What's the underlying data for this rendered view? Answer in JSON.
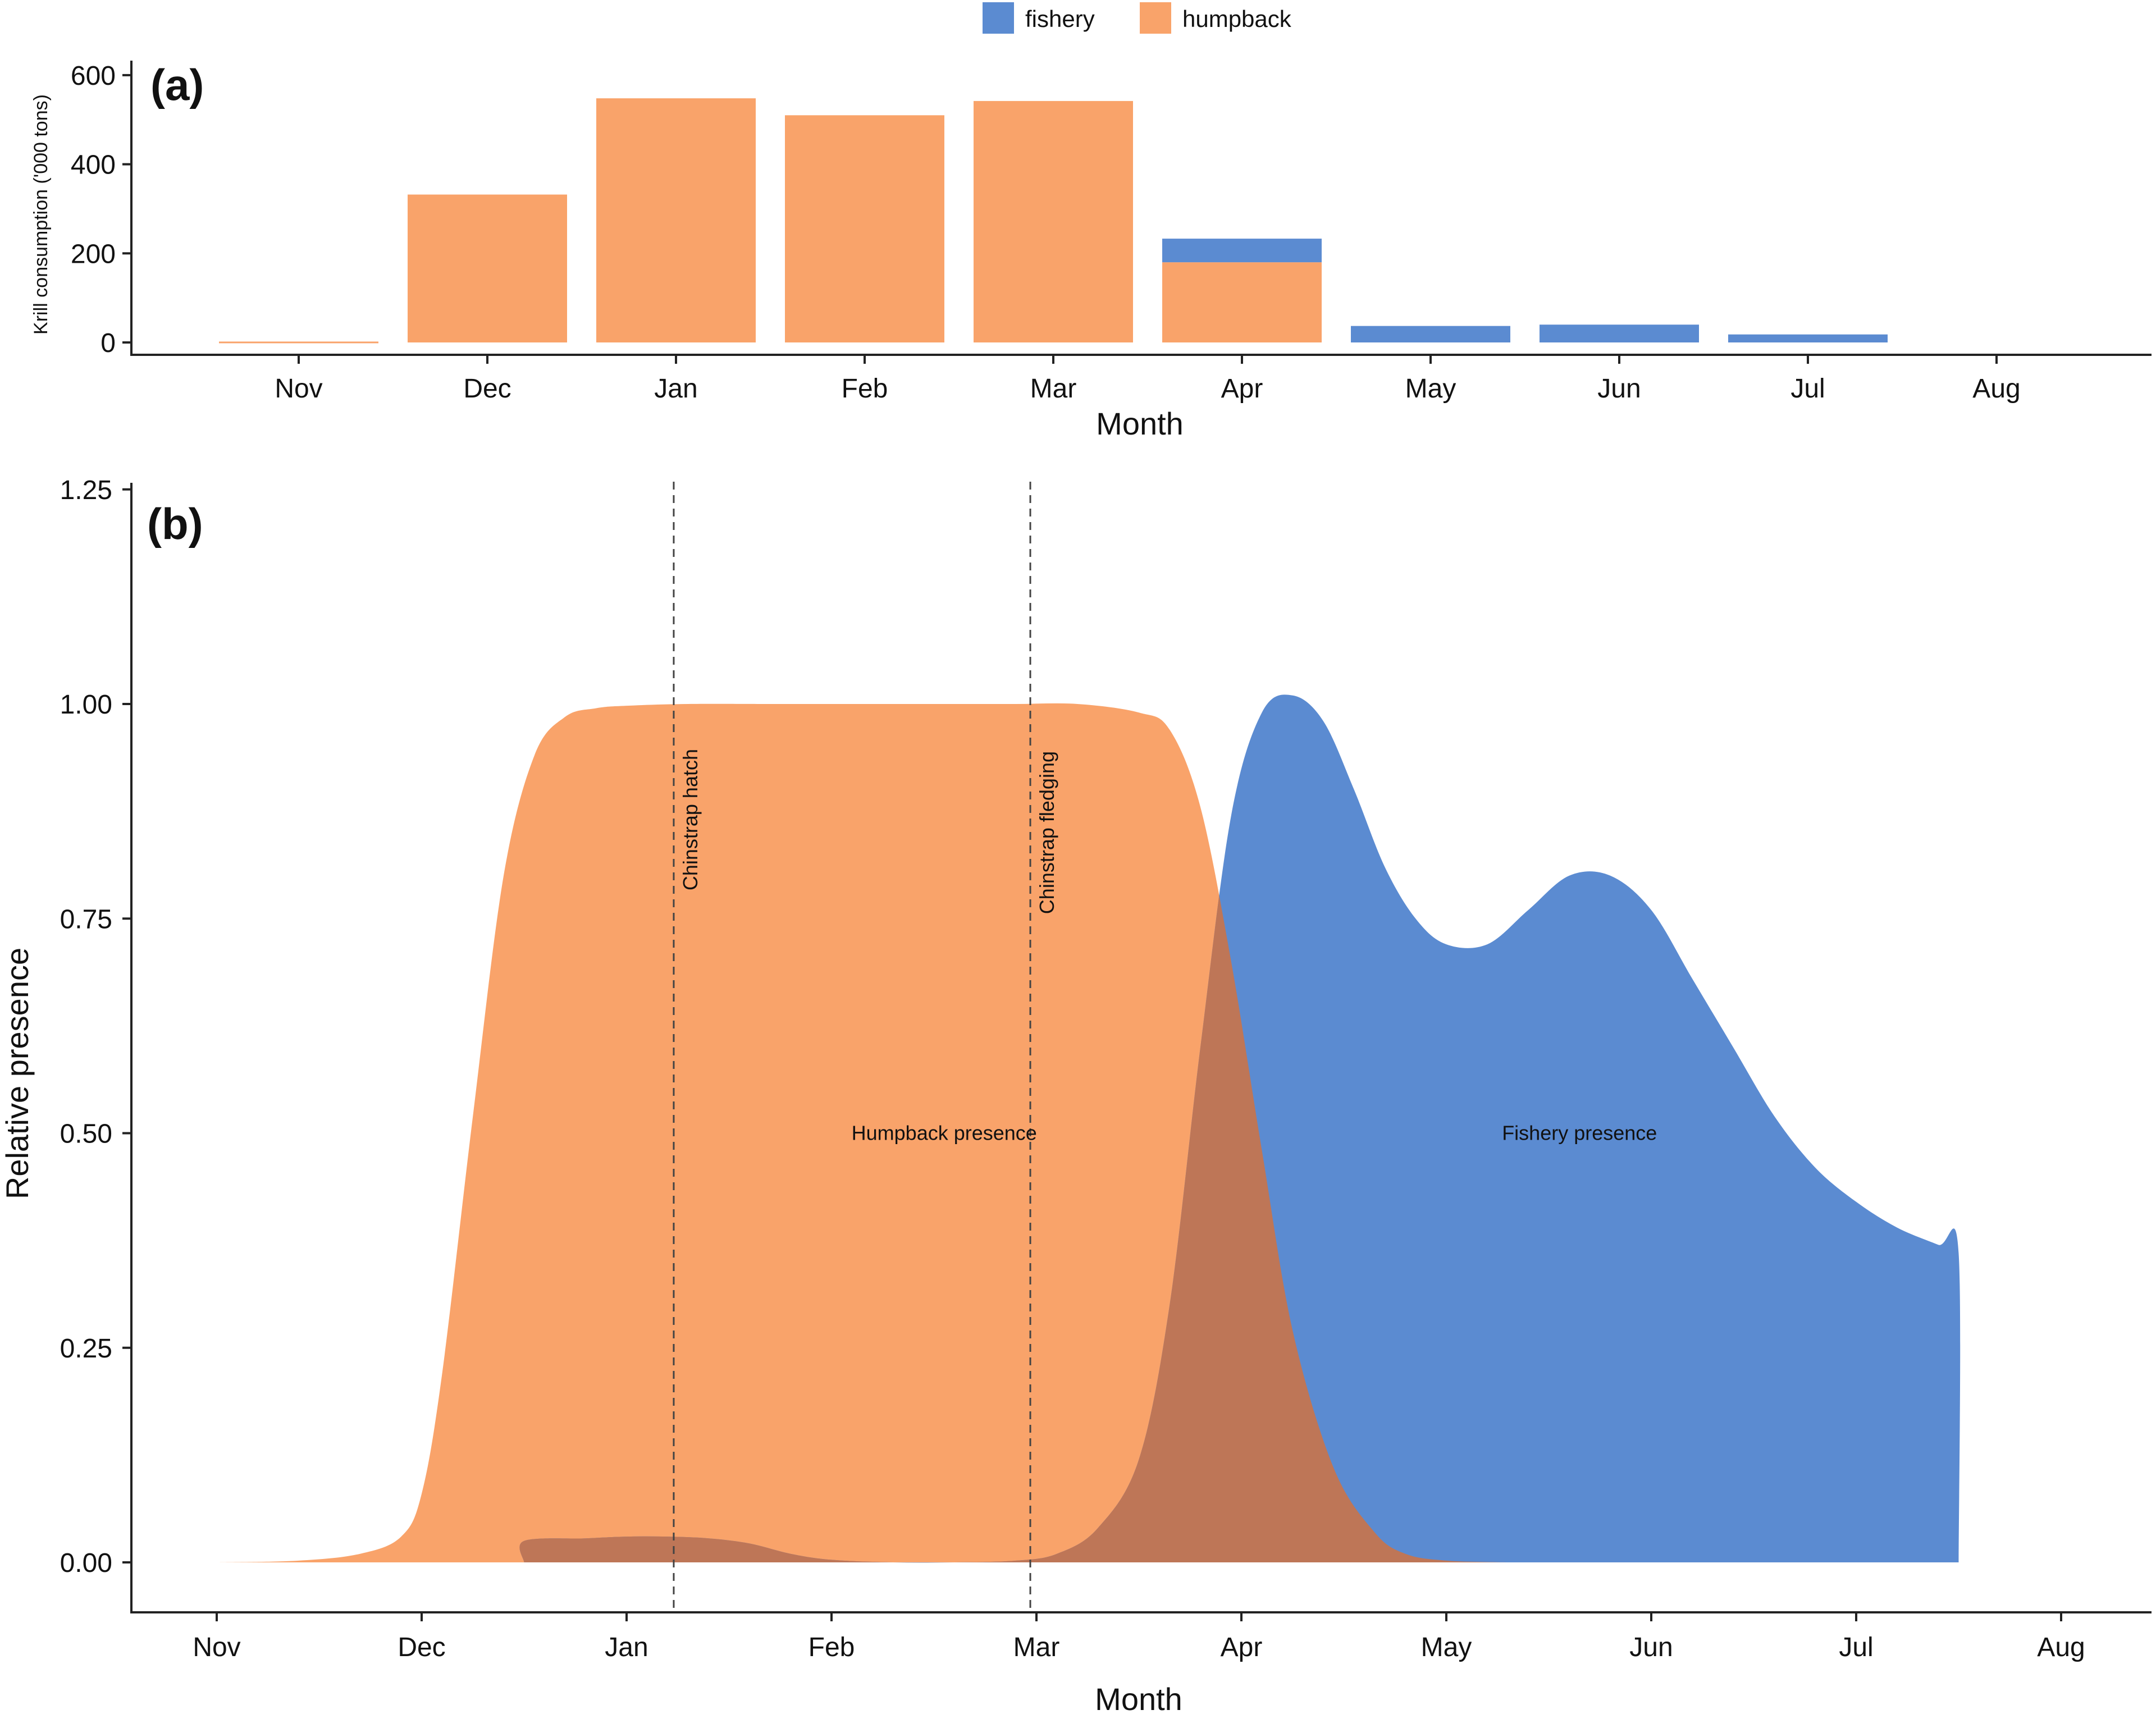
{
  "legend": {
    "items": [
      {
        "label": "fishery",
        "color": "#5b8bd1"
      },
      {
        "label": "humpback",
        "color": "#f9a36a"
      }
    ]
  },
  "colors": {
    "fishery": "#5b8bd1",
    "humpback": "#f9a36a",
    "overlap": "#be7657"
  },
  "chart_data": [
    {
      "type": "bar",
      "panel_label": "(a)",
      "stacked": true,
      "categories": [
        "Nov",
        "Dec",
        "Jan",
        "Feb",
        "Mar",
        "Apr",
        "May",
        "Jun",
        "Jul",
        "Aug"
      ],
      "series": [
        {
          "name": "humpback",
          "values": [
            2,
            332,
            548,
            510,
            542,
            180,
            0,
            0,
            0,
            0
          ]
        },
        {
          "name": "fishery",
          "values": [
            0,
            0,
            0,
            0,
            0,
            53,
            37,
            40,
            18,
            0
          ]
        }
      ],
      "xlabel": "Month",
      "ylabel": "Krill consumption ('000 tons)",
      "ylim": [
        0,
        620
      ],
      "yticks": [
        0,
        200,
        400,
        600
      ],
      "grid": false
    },
    {
      "type": "area",
      "panel_label": "(b)",
      "xlabel": "Month",
      "ylabel": "Relative presence",
      "x_ticks": [
        "Nov",
        "Dec",
        "Jan",
        "Feb",
        "Mar",
        "Apr",
        "May",
        "Jun",
        "Jul",
        "Aug"
      ],
      "xlim_months": [
        0,
        9
      ],
      "ylim": [
        -0.06,
        1.27
      ],
      "yticks": [
        "0.00",
        "0.25",
        "0.50",
        "0.75",
        "1.00",
        "1.25"
      ],
      "grid": false,
      "series": [
        {
          "name": "humpback",
          "label": "Humpback presence",
          "label_at": [
            3.55,
            0.5
          ],
          "x": [
            0.0,
            0.4,
            0.7,
            0.9,
            1.0,
            1.1,
            1.25,
            1.4,
            1.55,
            1.7,
            1.85,
            2.0,
            2.3,
            2.7,
            3.0,
            3.3,
            3.6,
            3.9,
            4.2,
            4.5,
            4.65,
            4.8,
            4.95,
            5.1,
            5.25,
            5.45,
            5.65,
            5.8,
            6.0,
            6.3
          ],
          "y": [
            0.0,
            0.002,
            0.01,
            0.03,
            0.08,
            0.22,
            0.52,
            0.8,
            0.94,
            0.985,
            0.995,
            0.998,
            1.0,
            1.0,
            1.0,
            1.0,
            1.0,
            1.0,
            1.0,
            0.99,
            0.97,
            0.88,
            0.7,
            0.48,
            0.27,
            0.11,
            0.035,
            0.01,
            0.002,
            0.0
          ]
        },
        {
          "name": "fishery",
          "label": "Fishery presence",
          "label_at": [
            6.65,
            0.5
          ],
          "x": [
            1.5,
            1.5,
            1.8,
            2.0,
            2.2,
            2.4,
            2.6,
            2.8,
            3.0,
            3.3,
            3.6,
            3.9,
            4.1,
            4.3,
            4.5,
            4.65,
            4.8,
            4.95,
            5.1,
            5.25,
            5.4,
            5.55,
            5.7,
            5.85,
            6.0,
            6.2,
            6.4,
            6.6,
            6.8,
            7.0,
            7.2,
            7.4,
            7.6,
            7.8,
            8.0,
            8.2,
            8.4,
            8.5,
            8.5
          ],
          "y": [
            0.0,
            0.025,
            0.028,
            0.03,
            0.03,
            0.028,
            0.022,
            0.01,
            0.003,
            0.0,
            0.0,
            0.002,
            0.01,
            0.04,
            0.12,
            0.3,
            0.6,
            0.87,
            0.99,
            1.01,
            0.98,
            0.9,
            0.81,
            0.75,
            0.72,
            0.72,
            0.76,
            0.8,
            0.8,
            0.76,
            0.68,
            0.6,
            0.52,
            0.46,
            0.42,
            0.39,
            0.37,
            0.36,
            0.0
          ]
        }
      ],
      "vlines": [
        {
          "x": 2.23,
          "label": "Chinstrap hatch"
        },
        {
          "x": 3.97,
          "label": "Chinstrap fledging"
        }
      ]
    }
  ]
}
